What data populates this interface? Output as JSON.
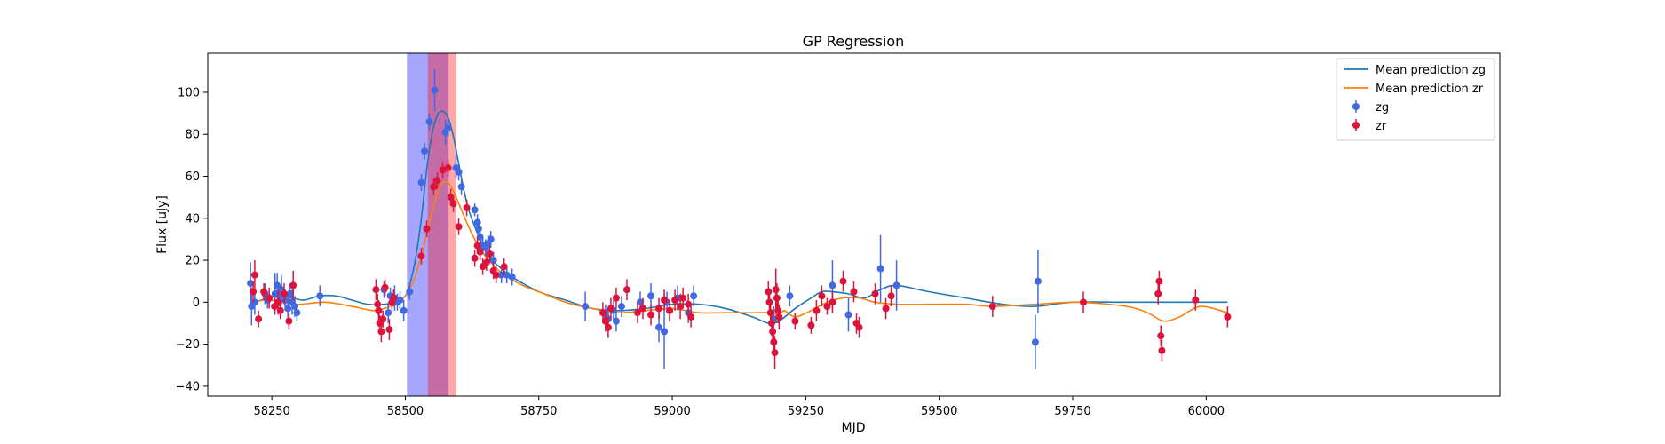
{
  "chart_data": {
    "type": "scatter",
    "title": "GP Regression",
    "xlabel": "MJD",
    "ylabel": "Flux [uJy]",
    "xlim": [
      58130,
      60550
    ],
    "ylim": [
      -44.7,
      118.6
    ],
    "xticks": [
      58250,
      58500,
      58750,
      59000,
      59250,
      59500,
      59750,
      60000
    ],
    "yticks": [
      -40,
      -20,
      0,
      20,
      40,
      60,
      80,
      100
    ],
    "grid": false,
    "legend_position": "top-right",
    "legend": [
      {
        "label": "Mean prediction zg",
        "kind": "line",
        "color": "#1f77b4"
      },
      {
        "label": "Mean prediction zr",
        "kind": "line",
        "color": "#ff7f0e"
      },
      {
        "label": "zg",
        "kind": "errorbar",
        "color": "#4169e1"
      },
      {
        "label": "zr",
        "kind": "errorbar",
        "color": "#dc143c"
      }
    ],
    "shaded_regions": [
      {
        "x0": 58503,
        "x1": 58581,
        "color": "#0000ff",
        "opacity": 0.35
      },
      {
        "x0": 58542,
        "x1": 58595,
        "color": "#ff0000",
        "opacity": 0.35
      }
    ],
    "series": [
      {
        "name": "Mean prediction zg",
        "kind": "line",
        "color": "#1f77b4",
        "x": [
          58210,
          58230,
          58260,
          58290,
          58310,
          58340,
          58370,
          58400,
          58430,
          58460,
          58480,
          58500,
          58510,
          58520,
          58530,
          58540,
          58550,
          58560,
          58570,
          58580,
          58590,
          58600,
          58610,
          58620,
          58640,
          58660,
          58680,
          58700,
          58750,
          58800,
          58850,
          58900,
          58950,
          59000,
          59050,
          59100,
          59150,
          59180,
          59200,
          59230,
          59260,
          59280,
          59300,
          59330,
          59360,
          59390,
          59420,
          59480,
          59550,
          59620,
          59680,
          59750,
          59850,
          59950,
          60040
        ],
        "y": [
          -1,
          1,
          3,
          2,
          1,
          3,
          3,
          1,
          -1,
          -1,
          0,
          3,
          10,
          22,
          40,
          63,
          80,
          89,
          91,
          88,
          79,
          66,
          53,
          43,
          30,
          21,
          16,
          12,
          5,
          1,
          -3,
          -4,
          -3,
          -1,
          -1,
          -3,
          -7,
          -10,
          -9,
          -3,
          2,
          5,
          5,
          4,
          2,
          6,
          8,
          5,
          2,
          -1,
          -2,
          0,
          0,
          0,
          0
        ]
      },
      {
        "name": "Mean prediction zr",
        "kind": "line",
        "color": "#ff7f0e",
        "x": [
          58210,
          58240,
          58270,
          58300,
          58350,
          58400,
          58440,
          58460,
          58480,
          58500,
          58515,
          58530,
          58545,
          58560,
          58570,
          58580,
          58590,
          58600,
          58615,
          58630,
          58650,
          58680,
          58720,
          58760,
          58800,
          58850,
          58900,
          58950,
          59000,
          59050,
          59100,
          59150,
          59180,
          59200,
          59210,
          59230,
          59260,
          59290,
          59320,
          59350,
          59380,
          59420,
          59480,
          59550,
          59600,
          59680,
          59760,
          59850,
          59890,
          59920,
          59950,
          59990,
          60040
        ],
        "y": [
          0,
          1,
          0,
          -1,
          0,
          -2,
          -4,
          -3,
          -1,
          3,
          10,
          22,
          38,
          52,
          57,
          57,
          53,
          47,
          38,
          30,
          22,
          14,
          8,
          4,
          0,
          -3,
          -5,
          -4,
          -3,
          -5,
          -5,
          -5,
          -5,
          -6,
          -4,
          -7,
          -4,
          0,
          2,
          2,
          0,
          -1,
          -1,
          -1,
          -2,
          -1,
          0,
          -2,
          -5,
          -9,
          -7,
          -2,
          -5
        ]
      },
      {
        "name": "zg",
        "kind": "errorbar",
        "color": "#4169e1",
        "points": [
          [
            58210,
            9,
            10
          ],
          [
            58212,
            -2,
            9
          ],
          [
            58218,
            0,
            6
          ],
          [
            58237,
            4,
            5
          ],
          [
            58242,
            1,
            4
          ],
          [
            58256,
            4,
            10
          ],
          [
            58260,
            8,
            6
          ],
          [
            58264,
            3,
            5
          ],
          [
            58268,
            6,
            7
          ],
          [
            58275,
            1,
            5
          ],
          [
            58280,
            -3,
            5
          ],
          [
            58284,
            4,
            5
          ],
          [
            58288,
            0,
            6
          ],
          [
            58293,
            -2,
            5
          ],
          [
            58297,
            -5,
            4
          ],
          [
            58340,
            3,
            5
          ],
          [
            58460,
            6,
            4
          ],
          [
            58468,
            -5,
            5
          ],
          [
            58472,
            3,
            4
          ],
          [
            58480,
            2,
            6
          ],
          [
            58485,
            0,
            4
          ],
          [
            58490,
            1,
            4
          ],
          [
            58497,
            -4,
            5
          ],
          [
            58508,
            5,
            4
          ],
          [
            58530,
            57,
            4
          ],
          [
            58536,
            72,
            4
          ],
          [
            58545,
            86,
            4
          ],
          [
            58555,
            101,
            10
          ],
          [
            58575,
            81,
            6
          ],
          [
            58580,
            83,
            4
          ],
          [
            58595,
            64,
            5
          ],
          [
            58600,
            62,
            4
          ],
          [
            58605,
            55,
            4
          ],
          [
            58630,
            44,
            3
          ],
          [
            58635,
            38,
            4
          ],
          [
            58637,
            35,
            4
          ],
          [
            58640,
            31,
            4
          ],
          [
            58645,
            27,
            4
          ],
          [
            58650,
            26,
            4
          ],
          [
            58655,
            28,
            4
          ],
          [
            58660,
            30,
            4
          ],
          [
            58665,
            20,
            4
          ],
          [
            58680,
            13,
            4
          ],
          [
            58690,
            13,
            4
          ],
          [
            58700,
            12,
            4
          ],
          [
            58837,
            -2,
            7
          ],
          [
            58875,
            -6,
            5
          ],
          [
            58880,
            -8,
            5
          ],
          [
            58890,
            -4,
            5
          ],
          [
            58895,
            -9,
            5
          ],
          [
            58905,
            -2,
            5
          ],
          [
            58940,
            0,
            5
          ],
          [
            58960,
            3,
            6
          ],
          [
            58975,
            -12,
            7
          ],
          [
            58985,
            -14,
            18
          ],
          [
            58990,
            0,
            5
          ],
          [
            59010,
            2,
            6
          ],
          [
            59030,
            -5,
            5
          ],
          [
            59040,
            3,
            5
          ],
          [
            59190,
            -8,
            6
          ],
          [
            59220,
            3,
            5
          ],
          [
            59300,
            8,
            12
          ],
          [
            59330,
            -6,
            8
          ],
          [
            59390,
            16,
            16
          ],
          [
            59420,
            8,
            12
          ],
          [
            59680,
            -19,
            13
          ],
          [
            59685,
            10,
            15
          ]
        ]
      },
      {
        "name": "zr",
        "kind": "errorbar",
        "color": "#dc143c",
        "points": [
          [
            58215,
            5,
            5
          ],
          [
            58218,
            13,
            7
          ],
          [
            58225,
            -8,
            4
          ],
          [
            58235,
            5,
            4
          ],
          [
            58245,
            2,
            5
          ],
          [
            58255,
            -2,
            4
          ],
          [
            58262,
            0,
            6
          ],
          [
            58266,
            -4,
            4
          ],
          [
            58273,
            4,
            5
          ],
          [
            58282,
            -9,
            4
          ],
          [
            58290,
            8,
            7
          ],
          [
            58445,
            6,
            5
          ],
          [
            58448,
            -1,
            5
          ],
          [
            58450,
            -4,
            5
          ],
          [
            58452,
            -10,
            4
          ],
          [
            58455,
            -14,
            5
          ],
          [
            58458,
            -8,
            4
          ],
          [
            58462,
            7,
            4
          ],
          [
            58470,
            -13,
            5
          ],
          [
            58475,
            0,
            4
          ],
          [
            58478,
            2,
            4
          ],
          [
            58530,
            22,
            4
          ],
          [
            58540,
            35,
            4
          ],
          [
            58553,
            55,
            4
          ],
          [
            58560,
            58,
            4
          ],
          [
            58570,
            63,
            4
          ],
          [
            58580,
            64,
            4
          ],
          [
            58585,
            50,
            4
          ],
          [
            58590,
            47,
            4
          ],
          [
            58600,
            36,
            4
          ],
          [
            58615,
            45,
            4
          ],
          [
            58630,
            21,
            4
          ],
          [
            58635,
            27,
            4
          ],
          [
            58640,
            24,
            4
          ],
          [
            58645,
            17,
            4
          ],
          [
            58652,
            19,
            4
          ],
          [
            58658,
            23,
            4
          ],
          [
            58665,
            15,
            4
          ],
          [
            58670,
            13,
            4
          ],
          [
            58685,
            17,
            4
          ],
          [
            58870,
            -5,
            5
          ],
          [
            58875,
            -9,
            5
          ],
          [
            58880,
            -12,
            5
          ],
          [
            58885,
            -3,
            5
          ],
          [
            58895,
            2,
            5
          ],
          [
            58915,
            6,
            5
          ],
          [
            58935,
            -5,
            5
          ],
          [
            58945,
            -3,
            5
          ],
          [
            58960,
            -6,
            5
          ],
          [
            58975,
            -3,
            5
          ],
          [
            58985,
            1,
            5
          ],
          [
            58995,
            -4,
            5
          ],
          [
            59005,
            1,
            5
          ],
          [
            59015,
            -2,
            6
          ],
          [
            59020,
            2,
            5
          ],
          [
            59030,
            -1,
            5
          ],
          [
            59035,
            -7,
            5
          ],
          [
            59180,
            5,
            5
          ],
          [
            59182,
            0,
            6
          ],
          [
            59184,
            -5,
            5
          ],
          [
            59186,
            -10,
            6
          ],
          [
            59188,
            -14,
            6
          ],
          [
            59190,
            -19,
            6
          ],
          [
            59192,
            -24,
            8
          ],
          [
            59194,
            6,
            10
          ],
          [
            59196,
            2,
            7
          ],
          [
            59198,
            -4,
            6
          ],
          [
            59200,
            -7,
            6
          ],
          [
            59230,
            -9,
            4
          ],
          [
            59260,
            -11,
            4
          ],
          [
            59270,
            -4,
            5
          ],
          [
            59280,
            3,
            5
          ],
          [
            59290,
            -2,
            4
          ],
          [
            59300,
            0,
            5
          ],
          [
            59320,
            10,
            5
          ],
          [
            59340,
            5,
            5
          ],
          [
            59345,
            -10,
            5
          ],
          [
            59350,
            -12,
            5
          ],
          [
            59380,
            4,
            5
          ],
          [
            59400,
            -3,
            5
          ],
          [
            59410,
            3,
            5
          ],
          [
            59600,
            -2,
            5
          ],
          [
            59770,
            0,
            5
          ],
          [
            59910,
            4,
            5
          ],
          [
            59912,
            10,
            5
          ],
          [
            59915,
            -16,
            5
          ],
          [
            59917,
            -23,
            5
          ],
          [
            59980,
            1,
            5
          ],
          [
            60040,
            -7,
            5
          ]
        ]
      }
    ]
  }
}
